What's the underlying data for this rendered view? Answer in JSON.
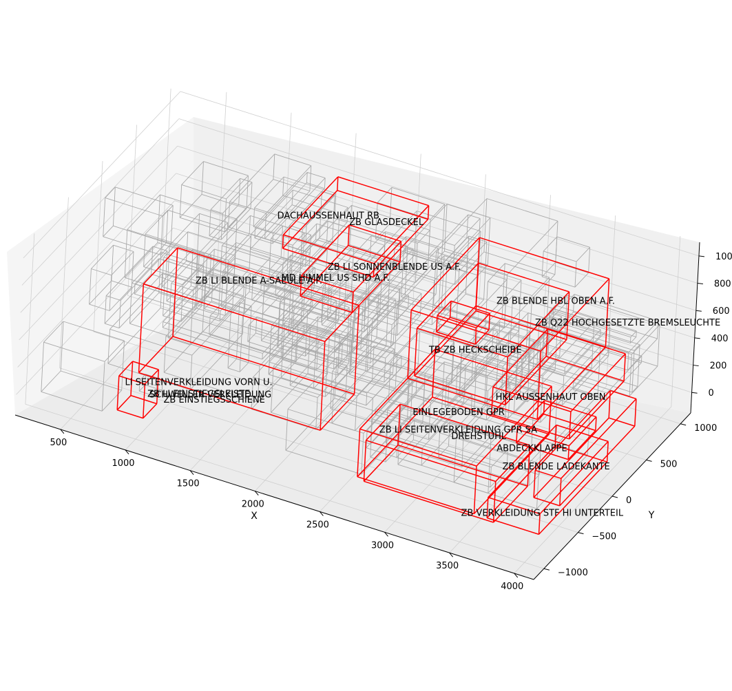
{
  "chart_data": {
    "type": "3d-wireframe",
    "title": "",
    "xlabel": "X",
    "ylabel": "Y",
    "zlabel": "",
    "xlim": [
      150,
      4150
    ],
    "ylim": [
      -1150,
      1150
    ],
    "zlim": [
      -150,
      1100
    ],
    "x_ticks": [
      "500",
      "1000",
      "1500",
      "2000",
      "2500",
      "3000",
      "3500",
      "4000"
    ],
    "y_ticks": [
      "−1000",
      "−500",
      "0",
      "500",
      "1000"
    ],
    "z_ticks": [
      "0",
      "200",
      "400",
      "600",
      "800",
      "1000"
    ],
    "grid": true,
    "colors": {
      "background_boxes": "#a9a9a9",
      "highlighted_boxes": "#ff0000",
      "pane": "#f2f2f2",
      "grid": "#cfcfcf"
    },
    "annotations": [
      "ZB GLASDECKEL",
      "DACHAUSSENHAUT RB",
      "ZB LI SONNENBLENDE US A.F.",
      "MD HIMMEL US SHD A.F.",
      "ZB LI BLENDE A-SAEULE A.F.",
      "ZB BLENDE HBL OBEN A.F.",
      "ZB Q22 HOCHGESETZTE BREMSLEUCHTE",
      "TB ZB HECKSCHEIBE",
      "LI SEITENVERKLEIDUNG VORN U.",
      "ZB LI EINSTIEGSLEISTE",
      "SCHWELLER VERKLEIDUNG",
      "ZB EINSTIEGSSCHIENE",
      "HKL AUSSENHAUT OBEN",
      "EINLEGEBODEN GPR",
      "ZB LI SEITENVERKLEIDUNG GPR SA",
      "DREHSTUHL",
      "ABDECKKLAPPE",
      "ZB BLENDE LADEKANTE",
      "ZB VERKLEIDUNG STF HI UNTERTEIL"
    ],
    "highlighted_boxes": [
      {
        "name": "ZB GLASDECKEL",
        "x": [
          1600,
          2300
        ],
        "y": [
          -100,
          700
        ],
        "z": [
          950,
          1050
        ]
      },
      {
        "name": "ZB LI SONNENBLENDE US A.F.",
        "x": [
          1900,
          2300
        ],
        "y": [
          -400,
          300
        ],
        "z": [
          850,
          1000
        ]
      },
      {
        "name": "ZB LI BLENDE A-SAEULE A.F.",
        "x": [
          900,
          2300
        ],
        "y": [
          -800,
          -300
        ],
        "z": [
          200,
          850
        ]
      },
      {
        "name": "ZB BLENDE HBL OBEN A.F.",
        "x": [
          2600,
          3600
        ],
        "y": [
          -100,
          900
        ],
        "z": [
          300,
          800
        ]
      },
      {
        "name": "ZB Q22 HOCHGESETZTE BREMSLEUCHTE",
        "x": [
          2800,
          3100
        ],
        "y": [
          -100,
          100
        ],
        "z": [
          700,
          820
        ]
      },
      {
        "name": "TB ZB HECKSCHEIBE",
        "x": [
          2700,
          3400
        ],
        "y": [
          -200,
          700
        ],
        "z": [
          400,
          750
        ]
      },
      {
        "name": "LI SEITENVERKLEIDUNG VORN U.",
        "x": [
          800,
          1000
        ],
        "y": [
          -900,
          -700
        ],
        "z": [
          -50,
          200
        ]
      },
      {
        "name": "HKL AUSSENHAUT OBEN",
        "x": [
          3300,
          3900
        ],
        "y": [
          -200,
          600
        ],
        "z": [
          300,
          500
        ]
      },
      {
        "name": "EINLEGEBODEN GPR",
        "x": [
          2600,
          3500
        ],
        "y": [
          -800,
          300
        ],
        "z": [
          -50,
          300
        ]
      },
      {
        "name": "ZB LI SEITENVERKLEIDUNG GPR SA",
        "x": [
          2700,
          3700
        ],
        "y": [
          -900,
          -400
        ],
        "z": [
          0,
          300
        ]
      },
      {
        "name": "ABDECKKLAPPE",
        "x": [
          3500,
          3900
        ],
        "y": [
          -200,
          200
        ],
        "z": [
          150,
          250
        ]
      },
      {
        "name": "ZB BLENDE LADEKANTE",
        "x": [
          3800,
          4000
        ],
        "y": [
          -500,
          600
        ],
        "z": [
          0,
          200
        ]
      },
      {
        "name": "ZB VERKLEIDUNG STF HI UNTERTEIL",
        "x": [
          3600,
          4000
        ],
        "y": [
          -800,
          200
        ],
        "z": [
          -50,
          100
        ]
      }
    ]
  }
}
